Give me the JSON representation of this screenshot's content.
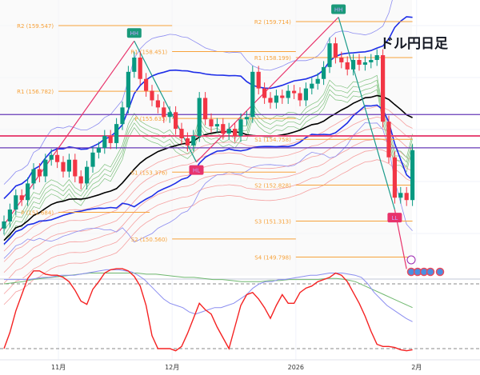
{
  "title": "ドル円日足",
  "colors": {
    "up": "#089981",
    "down": "#f23645",
    "pivot": "#f7a23a",
    "ma": "#000000",
    "band": "#1e2ee8",
    "band_outer": "#8c8cf0",
    "purple": "#673ab7",
    "pink": "#e84a78",
    "osc": "#f52222",
    "osc_sig1": "#8b8ef0",
    "osc_sig2": "#6fb86f"
  },
  "chart_data": {
    "type": "candlestick",
    "title": "ドル円日足",
    "x_ticks": [
      {
        "label": "11月",
        "index": 9.2
      },
      {
        "label": "12月",
        "index": 28.4
      },
      {
        "label": "2026",
        "index": 49.3
      },
      {
        "label": "2月",
        "index": 69.7
      }
    ],
    "closes": [
      151.3,
      151.8,
      152.4,
      152.2,
      152.9,
      153.5,
      153.2,
      153.9,
      154.1,
      153.8,
      153.4,
      153.9,
      153.2,
      152.9,
      153.6,
      154.2,
      154.4,
      154.9,
      154.6,
      155.4,
      156.1,
      157.6,
      158.2,
      157.3,
      156.8,
      156.4,
      156.1,
      155.7,
      155.9,
      155.2,
      154.8,
      154.5,
      154.9,
      156.5,
      155.6,
      155.3,
      155.4,
      155.0,
      155.2,
      154.9,
      155.6,
      155.7,
      157.6,
      156.9,
      156.5,
      156.3,
      156.6,
      156.5,
      156.8,
      156.7,
      156.4,
      156.9,
      157.1,
      157.3,
      157.8,
      158.8,
      158.2,
      158.0,
      157.7,
      158.1,
      157.9,
      158.0,
      158.1,
      158.3,
      155.5,
      154.0,
      152.3,
      152.5,
      152.2,
      154.3
    ],
    "price_range": [
      148.5,
      160.6
    ],
    "pivots": [
      {
        "label": "R2 (159.547)",
        "price": 159.547,
        "from": 9.2,
        "to": 28.4
      },
      {
        "label": "R1 (156.782)",
        "price": 156.782,
        "from": 9.2,
        "to": 28.4
      },
      {
        "label": "P (151.684)",
        "price": 151.684,
        "from": 9.2,
        "to": 24.6
      },
      {
        "label": "R1 (158.451)",
        "price": 158.451,
        "from": 28.4,
        "to": 49.3
      },
      {
        "label": "P (155.635)",
        "price": 155.635,
        "from": 28.4,
        "to": 49.3
      },
      {
        "label": "S1 (153.376)",
        "price": 153.376,
        "from": 28.4,
        "to": 49.3
      },
      {
        "label": "S2 (150.560)",
        "price": 150.56,
        "from": 28.4,
        "to": 49.3
      },
      {
        "label": "R2 (159.714)",
        "price": 159.714,
        "from": 49.3,
        "to": 69
      },
      {
        "label": "R1 (158.199)",
        "price": 158.199,
        "from": 49.3,
        "to": 69
      },
      {
        "label": "S1 (154.758)",
        "price": 154.758,
        "from": 49.3,
        "to": 69
      },
      {
        "label": "S2 (152.828)",
        "price": 152.828,
        "from": 49.3,
        "to": 69
      },
      {
        "label": "S3 (151.313)",
        "price": 151.313,
        "from": 49.3,
        "to": 69
      },
      {
        "label": "S4 (149.798)",
        "price": 149.798,
        "from": 49.3,
        "to": 69
      }
    ],
    "horizontal_lines": [
      {
        "price": 155.8,
        "color": "purple"
      },
      {
        "price": 154.9,
        "color": "pink"
      },
      {
        "price": 154.4,
        "color": "purple"
      }
    ],
    "markers": [
      {
        "label": "HH",
        "index": 22,
        "price": 158.9,
        "type": "high"
      },
      {
        "label": "HL",
        "index": 32.5,
        "price": 153.8,
        "type": "low"
      },
      {
        "label": "HH",
        "index": 56.5,
        "price": 159.9,
        "type": "high"
      },
      {
        "label": "LL",
        "index": 66,
        "price": 151.8,
        "type": "low"
      }
    ],
    "oscillator": {
      "levels": [
        80,
        20
      ],
      "values": [
        20,
        35,
        55,
        70,
        85,
        92,
        92,
        89,
        88,
        88,
        86,
        82,
        74,
        64,
        61,
        75,
        82,
        90,
        93,
        94,
        94,
        92,
        87,
        78,
        60,
        32,
        20,
        20,
        20,
        18,
        22,
        34,
        48,
        62,
        56,
        52,
        40,
        30,
        20,
        40,
        60,
        70,
        72,
        66,
        58,
        48,
        60,
        70,
        62,
        62,
        72,
        76,
        78,
        82,
        84,
        86,
        90,
        88,
        82,
        72,
        62,
        50,
        36,
        24,
        22,
        22,
        21,
        19,
        18,
        19
      ],
      "signal": [
        84,
        84,
        84,
        84,
        84,
        85,
        86,
        86,
        87,
        88,
        88,
        88,
        89,
        90,
        91,
        92,
        93,
        93,
        93,
        92,
        91,
        88,
        84,
        78,
        72,
        66,
        62,
        60,
        58,
        54,
        52,
        54,
        56,
        58,
        58,
        60,
        62,
        66,
        70,
        76,
        80,
        82,
        82,
        84,
        84,
        85,
        86,
        87,
        88,
        88,
        89,
        90,
        90,
        90,
        89,
        88,
        86,
        80,
        72,
        66,
        60,
        56,
        52,
        48,
        45
      ],
      "signal2": [
        80,
        81,
        82,
        84,
        85,
        86,
        87,
        88,
        89,
        90,
        90,
        90,
        90,
        90,
        90,
        89,
        89,
        88,
        87,
        86,
        86,
        85,
        84,
        84,
        83,
        82,
        82,
        82,
        83,
        83,
        84,
        84,
        84,
        84,
        85,
        85,
        84,
        82,
        78,
        74,
        70,
        66,
        62,
        58
      ]
    }
  }
}
